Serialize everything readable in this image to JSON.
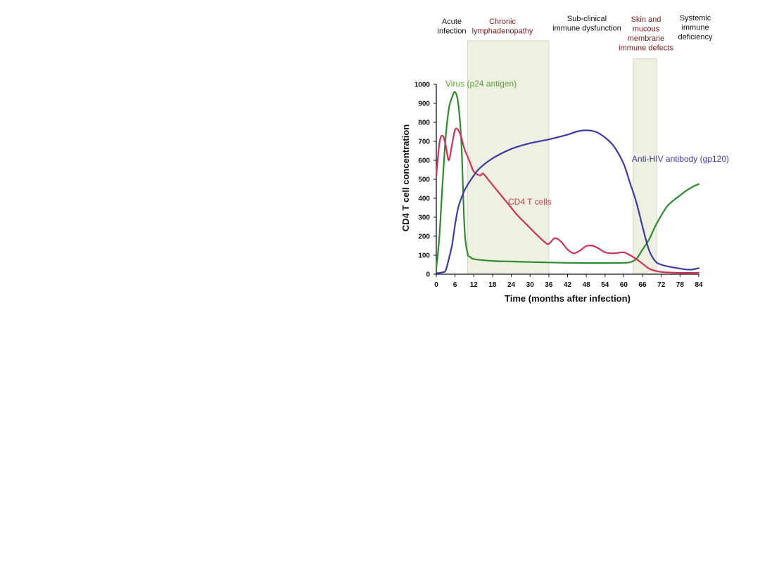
{
  "chart_data": {
    "type": "line",
    "xlabel": "Time (months after infection)",
    "ylabel": "CD4 T cell concentration",
    "xlim": [
      0,
      84
    ],
    "ylim": [
      0,
      1000
    ],
    "x_ticks": [
      "0",
      "6",
      "12",
      "18",
      "24",
      "30",
      "36",
      "42",
      "48",
      "54",
      "60",
      "66",
      "72",
      "78",
      "84"
    ],
    "y_ticks": [
      "0",
      "100",
      "200",
      "300",
      "400",
      "500",
      "600",
      "700",
      "800",
      "900",
      "1000"
    ],
    "phases": [
      {
        "lines": [
          "Acute",
          "infection"
        ],
        "color": "#111111"
      },
      {
        "lines": [
          "Chronic",
          "lymphadenopathy"
        ],
        "color": "#7a1a1a"
      },
      {
        "lines": [
          "Sub-clinical",
          "immune dysfunction"
        ],
        "color": "#111111"
      },
      {
        "lines": [
          "Skin and",
          "mucous",
          "membrane",
          "immune defects"
        ],
        "color": "#7a1a1a"
      },
      {
        "lines": [
          "Systemic",
          "immune",
          "deficiency"
        ],
        "color": "#111111"
      }
    ],
    "shaded_regions": [
      {
        "x0": 10,
        "x1": 36,
        "ymax": 1230
      },
      {
        "x0": 63,
        "x1": 70.5,
        "ymax": 1135
      }
    ],
    "series": [
      {
        "name": "Virus (p24 antigen)",
        "color": "#2e8b2e",
        "label_color": "#5a9e32",
        "points": [
          [
            0,
            30
          ],
          [
            1,
            200
          ],
          [
            2,
            480
          ],
          [
            3,
            720
          ],
          [
            4,
            870
          ],
          [
            5,
            930
          ],
          [
            6,
            960
          ],
          [
            7,
            900
          ],
          [
            8,
            700
          ],
          [
            9,
            250
          ],
          [
            10,
            110
          ],
          [
            11,
            90
          ],
          [
            12,
            80
          ],
          [
            18,
            70
          ],
          [
            24,
            67
          ],
          [
            30,
            64
          ],
          [
            36,
            62
          ],
          [
            42,
            60
          ],
          [
            48,
            59
          ],
          [
            54,
            59
          ],
          [
            60,
            60
          ],
          [
            62,
            63
          ],
          [
            64,
            80
          ],
          [
            66,
            130
          ],
          [
            68,
            180
          ],
          [
            70,
            250
          ],
          [
            72,
            310
          ],
          [
            74,
            360
          ],
          [
            76,
            390
          ],
          [
            78,
            415
          ],
          [
            80,
            440
          ],
          [
            82,
            460
          ],
          [
            84,
            475
          ]
        ]
      },
      {
        "name": "CD4 T cells",
        "color": "#d0305a",
        "label_color": "#cc3a3a",
        "points": [
          [
            0,
            520
          ],
          [
            1,
            690
          ],
          [
            2,
            730
          ],
          [
            3,
            680
          ],
          [
            4,
            600
          ],
          [
            5,
            680
          ],
          [
            6,
            760
          ],
          [
            7,
            760
          ],
          [
            8,
            720
          ],
          [
            9,
            660
          ],
          [
            10,
            620
          ],
          [
            11,
            580
          ],
          [
            12,
            540
          ],
          [
            14,
            520
          ],
          [
            15,
            530
          ],
          [
            17,
            490
          ],
          [
            20,
            430
          ],
          [
            23,
            370
          ],
          [
            26,
            310
          ],
          [
            29,
            260
          ],
          [
            32,
            210
          ],
          [
            35,
            165
          ],
          [
            36,
            160
          ],
          [
            38,
            190
          ],
          [
            40,
            170
          ],
          [
            42,
            130
          ],
          [
            44,
            110
          ],
          [
            46,
            125
          ],
          [
            48,
            148
          ],
          [
            50,
            150
          ],
          [
            52,
            135
          ],
          [
            54,
            115
          ],
          [
            56,
            110
          ],
          [
            58,
            112
          ],
          [
            60,
            115
          ],
          [
            62,
            100
          ],
          [
            64,
            80
          ],
          [
            66,
            55
          ],
          [
            68,
            30
          ],
          [
            70,
            18
          ],
          [
            72,
            12
          ],
          [
            76,
            8
          ],
          [
            80,
            7
          ],
          [
            84,
            8
          ]
        ]
      },
      {
        "name": "Anti-HIV antibody (gp120)",
        "color": "#3a3aa8",
        "label_color": "#3a3aa8",
        "points": [
          [
            0,
            5
          ],
          [
            2,
            10
          ],
          [
            3,
            20
          ],
          [
            4,
            80
          ],
          [
            5,
            150
          ],
          [
            6,
            260
          ],
          [
            7,
            350
          ],
          [
            8,
            400
          ],
          [
            9,
            440
          ],
          [
            10,
            470
          ],
          [
            12,
            520
          ],
          [
            14,
            560
          ],
          [
            18,
            610
          ],
          [
            24,
            660
          ],
          [
            30,
            690
          ],
          [
            36,
            710
          ],
          [
            42,
            735
          ],
          [
            45,
            752
          ],
          [
            48,
            758
          ],
          [
            51,
            750
          ],
          [
            54,
            720
          ],
          [
            57,
            670
          ],
          [
            60,
            580
          ],
          [
            62,
            480
          ],
          [
            64,
            380
          ],
          [
            66,
            250
          ],
          [
            68,
            130
          ],
          [
            70,
            70
          ],
          [
            72,
            50
          ],
          [
            76,
            35
          ],
          [
            80,
            25
          ],
          [
            82,
            25
          ],
          [
            84,
            32
          ]
        ]
      }
    ]
  }
}
